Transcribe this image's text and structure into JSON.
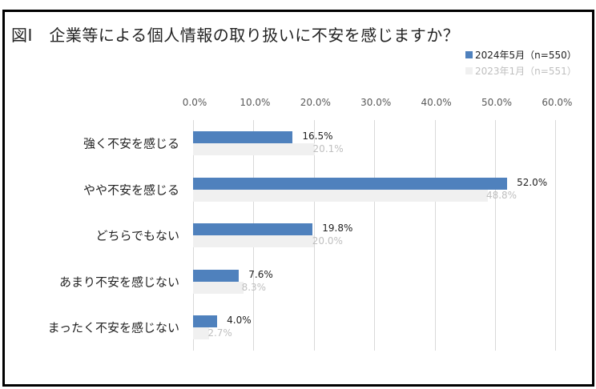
{
  "title": "図Ⅰ　企業等による個人情報の取り扱いに不安を感じますか？",
  "legend": [
    {
      "label": "2024年5月（n=550）",
      "color": "#4f81bd",
      "text_color": "#222222"
    },
    {
      "label": "2023年1月（n=551）",
      "color": "#f0f0f0",
      "text_color": "#bfbfbf"
    }
  ],
  "axis": {
    "ticks": [
      "0.0%",
      "10.0%",
      "20.0%",
      "30.0%",
      "40.0%",
      "50.0%",
      "60.0%"
    ]
  },
  "chart_data": {
    "type": "bar",
    "orientation": "horizontal",
    "title": "図Ⅰ　企業等による個人情報の取り扱いに不安を感じますか？",
    "xlabel": "",
    "ylabel": "",
    "xlim": [
      0,
      60
    ],
    "grid": true,
    "legend_position": "top-right",
    "categories": [
      "強く不安を感じる",
      "やや不安を感じる",
      "どちらでもない",
      "あまり不安を感じない",
      "まったく不安を感じない"
    ],
    "series": [
      {
        "name": "2024年5月（n=550）",
        "color": "#4f81bd",
        "values": [
          16.5,
          52.0,
          19.8,
          7.6,
          4.0
        ],
        "labels": [
          "16.5%",
          "52.0%",
          "19.8%",
          "7.6%",
          "4.0%"
        ]
      },
      {
        "name": "2023年1月（n=551）",
        "color": "#f0f0f0",
        "values": [
          20.1,
          48.8,
          20.0,
          8.3,
          2.7
        ],
        "labels": [
          "20.1%",
          "48.8%",
          "20.0%",
          "8.3%",
          "2.7%"
        ]
      }
    ]
  }
}
